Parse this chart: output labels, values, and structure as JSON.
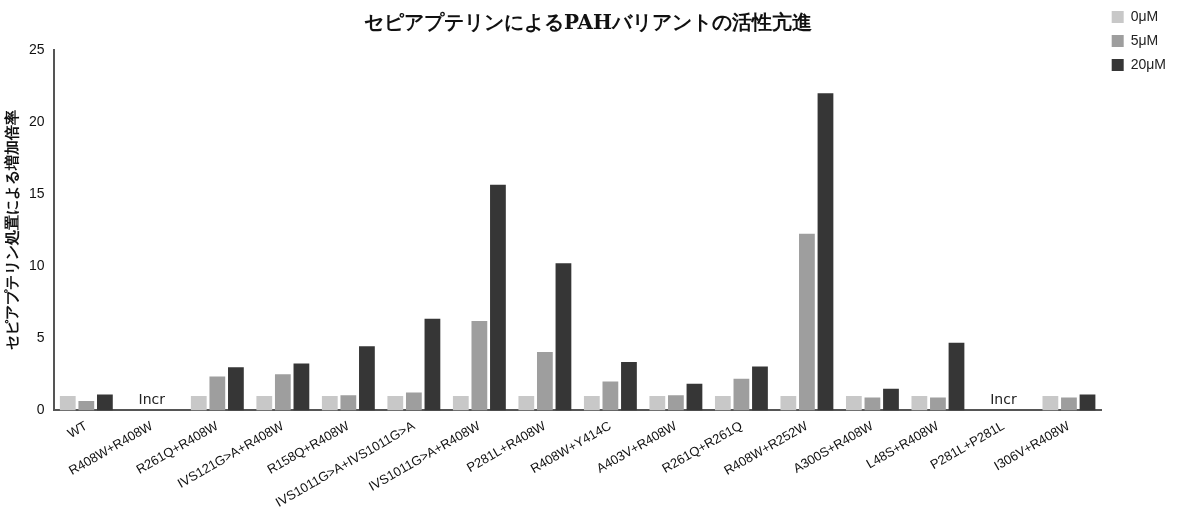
{
  "chart_data": {
    "type": "bar",
    "title": "セピアプテリンによるPAHバリアントの活性亢進",
    "ylabel": "セピアプテリン処置による増加倍率",
    "categories": [
      "WT",
      "R408W+R408W",
      "R261Q+R408W",
      "IVS121G>A+R408W",
      "R158Q+R408W",
      "IVS1011G>A+IVS1011G>A",
      "IVS1011G>A+R408W",
      "P281L+R408W",
      "R408W+Y414C",
      "A403V+R408W",
      "R261Q+R261Q",
      "R408W+R252W",
      "A300S+R408W",
      "L48S+R408W",
      "P281L+P281L",
      "I306V+R408W"
    ],
    "series": [
      {
        "name": "0μM",
        "color": "#c8c8c8",
        "values": [
          1,
          null,
          1,
          1,
          1,
          1,
          1,
          1,
          1,
          1,
          1,
          1,
          1,
          1,
          null,
          1
        ]
      },
      {
        "name": "5μM",
        "color": "#9e9e9e",
        "values": [
          0.65,
          null,
          2.35,
          2.5,
          1.05,
          1.25,
          6.2,
          4.05,
          2.0,
          1.05,
          2.2,
          12.25,
          0.9,
          0.9,
          null,
          0.9
        ]
      },
      {
        "name": "20μM",
        "color": "#363636",
        "values": [
          1.1,
          null,
          3.0,
          3.25,
          4.45,
          6.35,
          15.65,
          10.2,
          3.35,
          1.85,
          3.05,
          22.0,
          1.5,
          4.7,
          null,
          1.1
        ]
      }
    ],
    "ylim": [
      0,
      25
    ],
    "yticks": [
      0,
      5,
      10,
      15,
      20,
      25
    ],
    "grid": false,
    "legend": "top right",
    "annotations": [
      "Incr",
      "Incr"
    ]
  }
}
